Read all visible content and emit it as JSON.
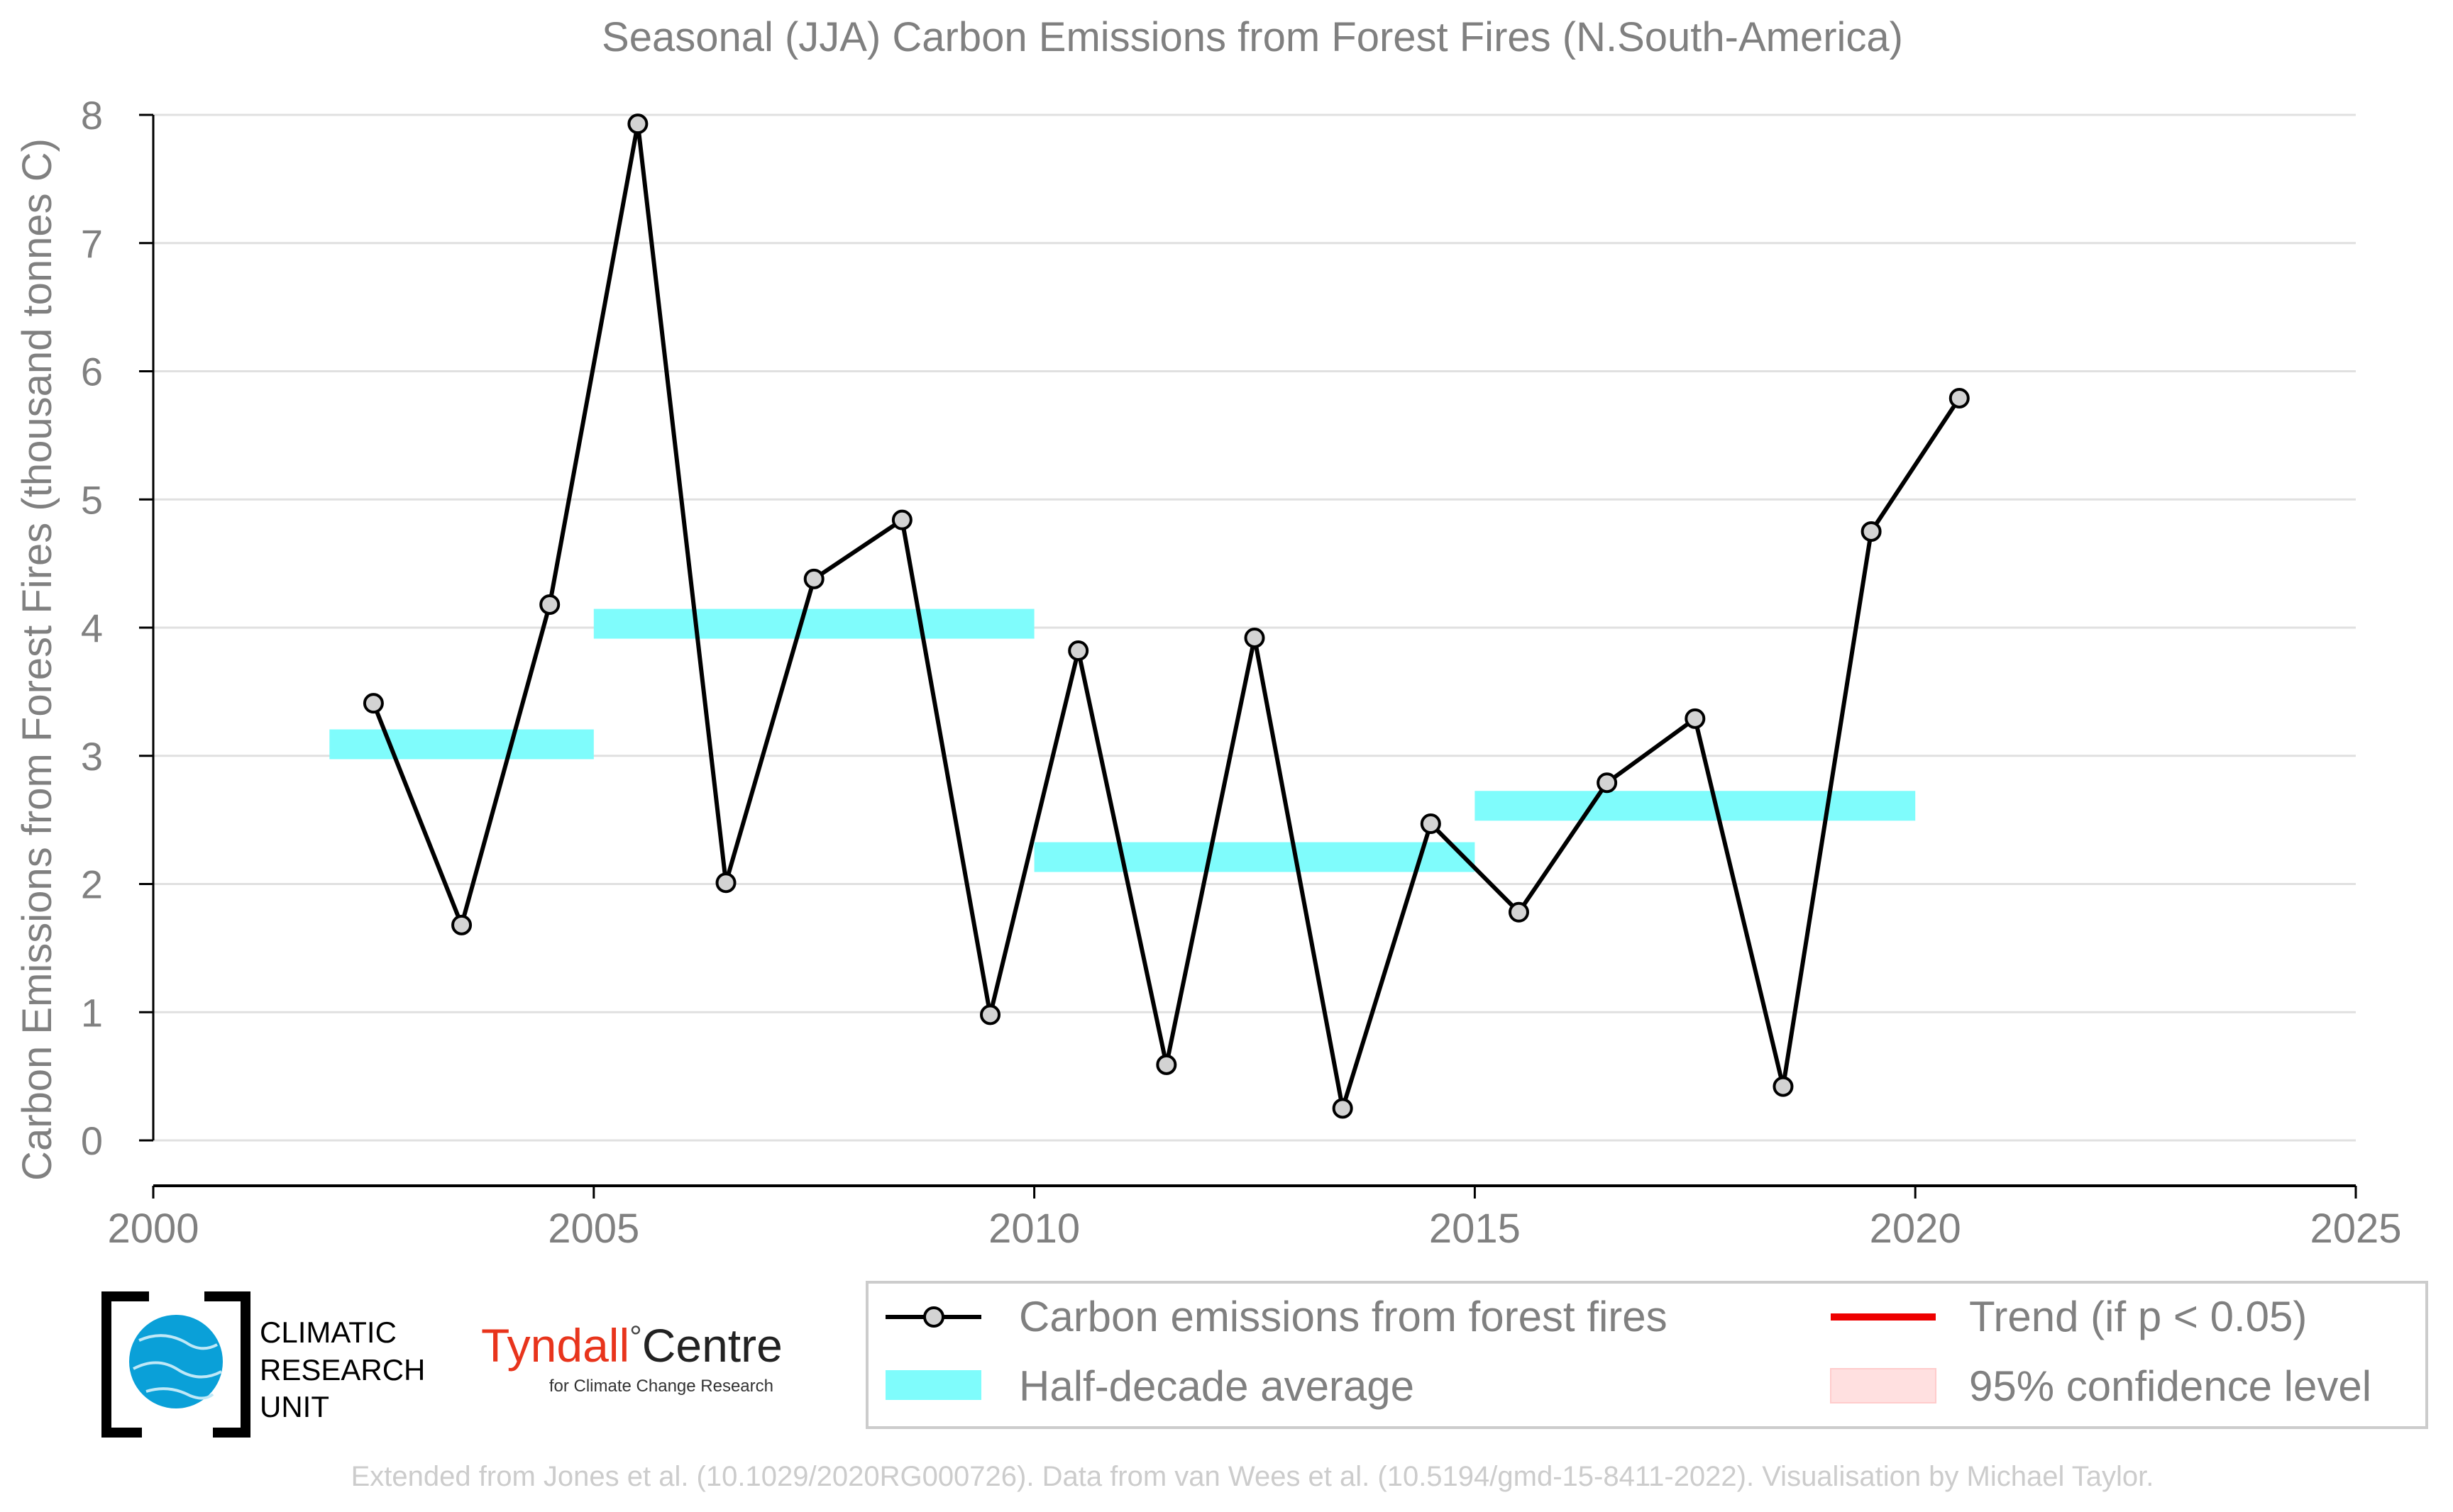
{
  "chart_data": {
    "type": "line",
    "title": "Seasonal (JJA) Carbon Emissions from Forest Fires (N.South-America)",
    "xlabel": "",
    "ylabel": "Carbon Emissions from Forest Fires (thousand tonnes C)",
    "xlim": [
      2000,
      2025
    ],
    "ylim": [
      0,
      8
    ],
    "x_ticks": [
      "2000",
      "2005",
      "2010",
      "2015",
      "2020",
      "2025"
    ],
    "y_ticks": [
      "0",
      "1",
      "2",
      "3",
      "4",
      "5",
      "6",
      "7",
      "8"
    ],
    "grid": "horizontal",
    "series": [
      {
        "name": "Carbon emissions from forest fires",
        "color": "#000000",
        "marker_color": "#d3d3d3",
        "x": [
          2002.5,
          2003.5,
          2004.5,
          2005.5,
          2006.5,
          2007.5,
          2008.5,
          2009.5,
          2010.5,
          2011.5,
          2012.5,
          2013.5,
          2014.5,
          2015.5,
          2016.5,
          2017.5,
          2018.5,
          2019.5,
          2020.5
        ],
        "values": [
          3.41,
          1.68,
          4.18,
          7.93,
          2.01,
          4.38,
          4.84,
          0.98,
          3.82,
          0.59,
          3.92,
          0.25,
          2.47,
          1.78,
          2.79,
          3.29,
          0.42,
          4.75,
          5.79
        ]
      }
    ],
    "half_decade_average": {
      "name": "Half-decade average",
      "color": "#7ffcfc",
      "periods": [
        {
          "start": 2002,
          "end": 2005,
          "value": 3.09
        },
        {
          "start": 2005,
          "end": 2010,
          "value": 4.03
        },
        {
          "start": 2010,
          "end": 2015,
          "value": 2.21
        },
        {
          "start": 2015,
          "end": 2020,
          "value": 2.61
        }
      ]
    },
    "legend": {
      "position": "bottom-right",
      "entries": [
        {
          "label": "Carbon emissions from forest fires",
          "kind": "line-marker",
          "color": "#000000"
        },
        {
          "label": "Trend (if p < 0.05)",
          "kind": "line",
          "color": "#ee0000"
        },
        {
          "label": "Half-decade average",
          "kind": "band",
          "color": "#7ffcfc"
        },
        {
          "label": "95% confidence level",
          "kind": "patch",
          "color": "#ffe0e0"
        }
      ]
    }
  },
  "logos": {
    "cru_lines": [
      "CLIMATIC",
      "RESEARCH",
      "UNIT"
    ],
    "tyndall_name": "Tyndall",
    "tyndall_degree": "°",
    "tyndall_centre": "Centre",
    "tyndall_sub": "for Climate Change Research"
  },
  "footer": {
    "credit": "Extended from Jones et al. (10.1029/2020RG000726). Data from van Wees et al. (10.5194/gmd-15-8411-2022). Visualisation by Michael Taylor."
  },
  "colors": {
    "axis_text": "#808080",
    "grid": "#e0e0e0",
    "tyndall_red": "#e8341c",
    "cru_blue": "#0aa0d8",
    "footer_text": "#cccccc"
  }
}
